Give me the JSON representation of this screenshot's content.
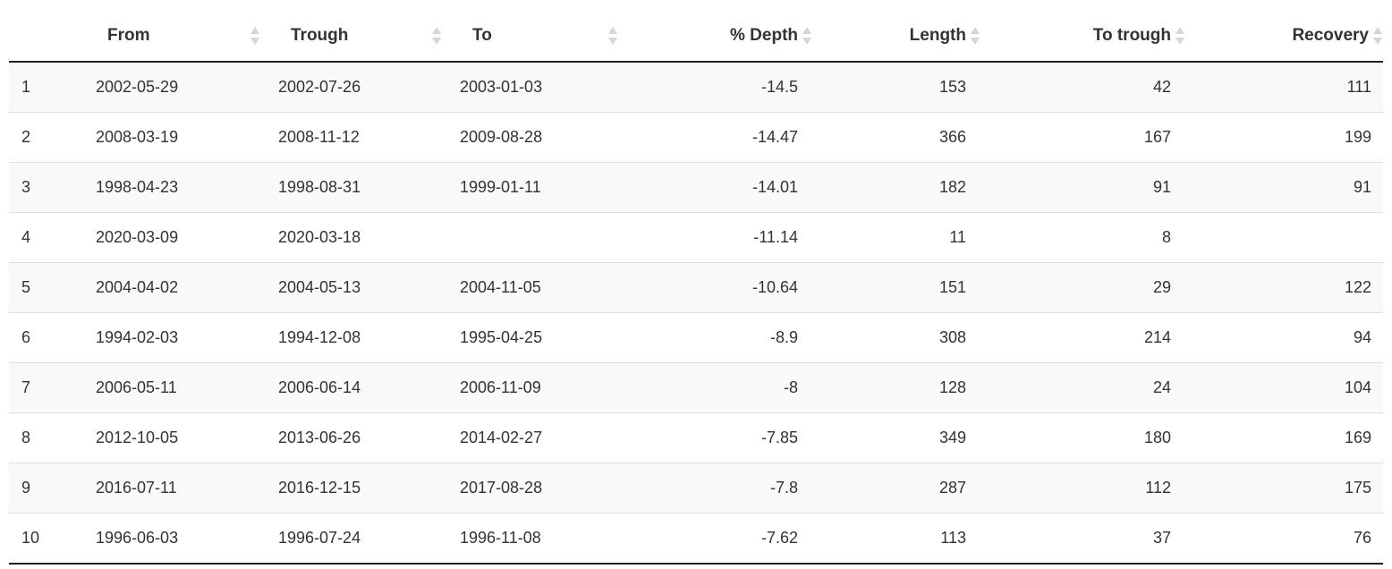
{
  "table": {
    "columns": {
      "index": "",
      "from": "From",
      "trough": "Trough",
      "to": "To",
      "depth": "% Depth",
      "length": "Length",
      "to_trough": "To trough",
      "recovery": "Recovery"
    },
    "rows": [
      {
        "index": "1",
        "from": "2002-05-29",
        "trough": "2002-07-26",
        "to": "2003-01-03",
        "depth": "-14.5",
        "length": "153",
        "to_trough": "42",
        "recovery": "111"
      },
      {
        "index": "2",
        "from": "2008-03-19",
        "trough": "2008-11-12",
        "to": "2009-08-28",
        "depth": "-14.47",
        "length": "366",
        "to_trough": "167",
        "recovery": "199"
      },
      {
        "index": "3",
        "from": "1998-04-23",
        "trough": "1998-08-31",
        "to": "1999-01-11",
        "depth": "-14.01",
        "length": "182",
        "to_trough": "91",
        "recovery": "91"
      },
      {
        "index": "4",
        "from": "2020-03-09",
        "trough": "2020-03-18",
        "to": "",
        "depth": "-11.14",
        "length": "11",
        "to_trough": "8",
        "recovery": ""
      },
      {
        "index": "5",
        "from": "2004-04-02",
        "trough": "2004-05-13",
        "to": "2004-11-05",
        "depth": "-10.64",
        "length": "151",
        "to_trough": "29",
        "recovery": "122"
      },
      {
        "index": "6",
        "from": "1994-02-03",
        "trough": "1994-12-08",
        "to": "1995-04-25",
        "depth": "-8.9",
        "length": "308",
        "to_trough": "214",
        "recovery": "94"
      },
      {
        "index": "7",
        "from": "2006-05-11",
        "trough": "2006-06-14",
        "to": "2006-11-09",
        "depth": "-8",
        "length": "128",
        "to_trough": "24",
        "recovery": "104"
      },
      {
        "index": "8",
        "from": "2012-10-05",
        "trough": "2013-06-26",
        "to": "2014-02-27",
        "depth": "-7.85",
        "length": "349",
        "to_trough": "180",
        "recovery": "169"
      },
      {
        "index": "9",
        "from": "2016-07-11",
        "trough": "2016-12-15",
        "to": "2017-08-28",
        "depth": "-7.8",
        "length": "287",
        "to_trough": "112",
        "recovery": "175"
      },
      {
        "index": "10",
        "from": "1996-06-03",
        "trough": "1996-07-24",
        "to": "1996-11-08",
        "depth": "-7.62",
        "length": "113",
        "to_trough": "37",
        "recovery": "76"
      }
    ]
  },
  "icons": {
    "sort": "sort-both-icon"
  },
  "colors": {
    "header_text": "#333333",
    "rule": "#222222",
    "row_stripe": "#f9f9f9",
    "row_border": "#dddddd",
    "sort_arrow": "#d6d6d6"
  }
}
